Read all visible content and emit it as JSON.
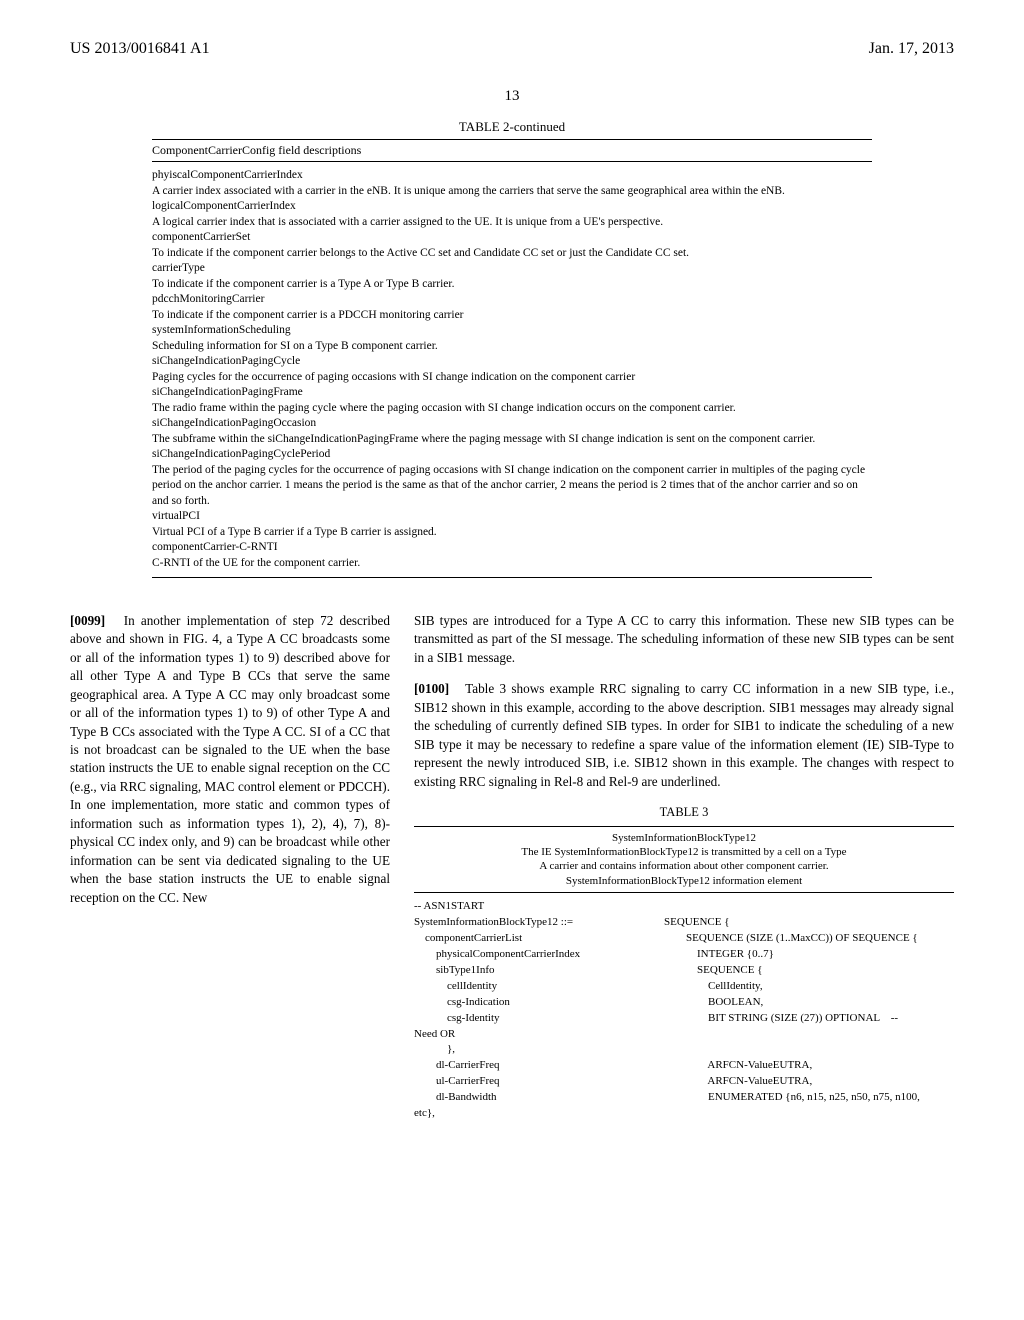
{
  "header": {
    "left": "US 2013/0016841 A1",
    "right": "Jan. 17, 2013",
    "pageNumber": "13"
  },
  "table2": {
    "caption": "TABLE 2-continued",
    "title": "ComponentCarrierConfig field descriptions",
    "entries": [
      {
        "term": "phyiscalComponentCarrierIndex",
        "desc": "A carrier index associated with a carrier in the eNB. It is unique among the carriers that serve the same geographical area within the eNB."
      },
      {
        "term": "logicalComponentCarrierIndex",
        "desc": "A logical carrier index that is associated with a carrier assigned to the UE. It is unique from a UE's perspective."
      },
      {
        "term": "componentCarrierSet",
        "desc": "To indicate if the component carrier belongs to the Active CC set and Candidate CC set or just the Candidate CC set."
      },
      {
        "term": "carrierType",
        "desc": "To indicate if the component carrier is a Type A or Type B carrier."
      },
      {
        "term": "pdcchMonitoringCarrier",
        "desc": "To indicate if the component carrier is a PDCCH monitoring carrier"
      },
      {
        "term": "systemInformationScheduling",
        "desc": "Scheduling information for SI on a Type B component carrier."
      },
      {
        "term": "siChangeIndicationPagingCycle",
        "desc": "Paging cycles for the occurrence of paging occasions with SI change indication on the component carrier"
      },
      {
        "term": "siChangeIndicationPagingFrame",
        "desc": "The radio frame within the paging cycle where the paging occasion with SI change indication occurs on the component carrier."
      },
      {
        "term": "siChangeIndicationPagingOccasion",
        "desc": "The subframe within the siChangeIndicationPagingFrame where the paging message with SI change indication is sent on the component carrier."
      },
      {
        "term": "siChangeIndicationPagingCyclePeriod",
        "desc": "The period of the paging cycles for the occurrence of paging occasions with SI change indication on the component carrier in multiples of the paging cycle period on the anchor carrier. 1 means the period is the same as that of the anchor carrier, 2 means the period is 2 times that of the anchor carrier and so on and so forth."
      },
      {
        "term": "virtualPCI",
        "desc": "Virtual PCI of a Type B carrier if a Type B carrier is assigned."
      },
      {
        "term": "componentCarrier-C-RNTI",
        "desc": "C-RNTI of the UE for the component carrier."
      }
    ]
  },
  "leftCol": {
    "paraNum": "[0099]",
    "text": "In another implementation of step 72 described above and shown in FIG. 4, a Type A CC broadcasts some or all of the information types 1) to 9) described above for all other Type A and Type B CCs that serve the same geographical area. A Type A CC may only broadcast some or all of the information types 1) to 9) of other Type A and Type B CCs associated with the Type A CC. SI of a CC that is not broadcast can be signaled to the UE when the base station instructs the UE to enable signal reception on the CC (e.g., via RRC signaling, MAC control element or PDCCH). In one implementation, more static and common types of information such as information types 1), 2), 4), 7), 8)-physical CC index only, and 9) can be broadcast while other information can be sent via dedicated signaling to the UE when the base station instructs the UE to enable signal reception on the CC. New"
  },
  "rightCol": {
    "para1": "SIB types are introduced for a Type A CC to carry this information. These new SIB types can be transmitted as part of the SI message. The scheduling information of these new SIB types can be sent in a SIB1 message.",
    "paraNum2": "[0100]",
    "para2": "Table 3 shows example RRC signaling to carry CC information in a new SIB type, i.e., SIB12 shown in this example, according to the above description. SIB1 messages may already signal the scheduling of currently defined SIB types. In order for SIB1 to indicate the scheduling of a new SIB type it may be necessary to redefine a spare value of the information element (IE) SIB-Type to represent the newly introduced SIB, i.e. SIB12 shown in this example. The changes with respect to existing RRC signaling in Rel-8 and Rel-9 are underlined."
  },
  "table3": {
    "caption": "TABLE 3",
    "sub1": "SystemInformationBlockType12",
    "sub2": "The IE SystemInformationBlockType12 is transmitted by a cell on a Type",
    "sub3": "A carrier and contains information about other component carrier.",
    "sub4": "SystemInformationBlockType12 information element",
    "lines": [
      {
        "l": "-- ASN1START",
        "r": ""
      },
      {
        "l": "SystemInformationBlockType12 ::=",
        "r": "SEQUENCE {"
      },
      {
        "l": "    componentCarrierList",
        "r": "        SEQUENCE (SIZE (1..MaxCC)) OF SEQUENCE {"
      },
      {
        "l": "        physicalComponentCarrierIndex",
        "r": "            INTEGER {0..7}"
      },
      {
        "l": "        sibType1Info",
        "r": "            SEQUENCE {"
      },
      {
        "l": "            cellIdentity",
        "r": "                CellIdentity,"
      },
      {
        "l": "            csg-Indication",
        "r": "                BOOLEAN,"
      },
      {
        "l": "            csg-Identity",
        "r": "                BIT STRING (SIZE (27)) OPTIONAL    --"
      },
      {
        "l": "Need OR",
        "r": ""
      },
      {
        "l": "            },",
        "r": ""
      },
      {
        "l": "        dl-CarrierFreq",
        "r": "                ARFCN-ValueEUTRA,"
      },
      {
        "l": "        ul-CarrierFreq",
        "r": "                ARFCN-ValueEUTRA,"
      },
      {
        "l": "        dl-Bandwidth",
        "r": "                ENUMERATED {n6, n15, n25, n50, n75, n100,"
      },
      {
        "l": "etc},",
        "r": ""
      }
    ]
  }
}
